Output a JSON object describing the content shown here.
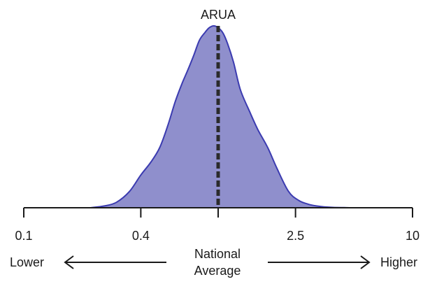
{
  "chart_data": {
    "type": "area",
    "title": "ARUA",
    "x_scale": "log",
    "xlim": [
      0.1,
      10
    ],
    "ylim": [
      0,
      1
    ],
    "ticks": [
      {
        "value": 0.1,
        "label": "0.1"
      },
      {
        "value": 0.4,
        "label": "0.4"
      },
      {
        "value": 2.5,
        "label": "2.5"
      },
      {
        "value": 10,
        "label": "10"
      }
    ],
    "national_average": 1.0,
    "lower_label": "Lower",
    "higher_label": "Higher",
    "center_label_line1": "National",
    "center_label_line2": "Average",
    "grid": false,
    "density": {
      "x": [
        0.22,
        0.26,
        0.3,
        0.35,
        0.4,
        0.45,
        0.5,
        0.55,
        0.6,
        0.65,
        0.7,
        0.75,
        0.8,
        0.85,
        0.9,
        0.95,
        1.0,
        1.06,
        1.12,
        1.2,
        1.3,
        1.45,
        1.6,
        1.8,
        2.0,
        2.3,
        2.6,
        2.9,
        3.2,
        3.5,
        3.9,
        4.3,
        4.8
      ],
      "y": [
        0.0,
        0.01,
        0.03,
        0.09,
        0.18,
        0.25,
        0.33,
        0.45,
        0.58,
        0.68,
        0.76,
        0.84,
        0.92,
        0.96,
        0.99,
        1.0,
        0.99,
        0.96,
        0.9,
        0.8,
        0.65,
        0.53,
        0.43,
        0.33,
        0.22,
        0.09,
        0.04,
        0.02,
        0.01,
        0.005,
        0.002,
        0.001,
        0.0
      ]
    },
    "colors": {
      "fill": "#8f8fcc",
      "stroke": "#3b3bb0",
      "axis": "#1a1a1a",
      "marker": "#2b2b2b"
    }
  }
}
